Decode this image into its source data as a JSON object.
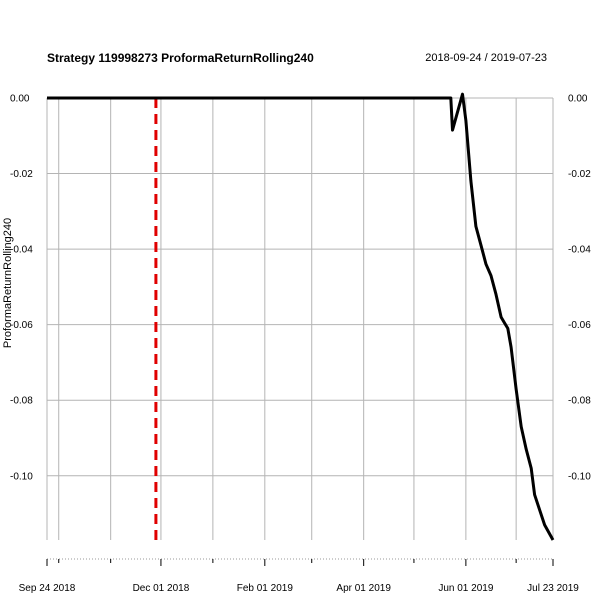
{
  "chart_data": {
    "type": "line",
    "title": "Strategy 119998273 ProformaReturnRolling240",
    "date_range": "2018-09-24 / 2019-07-23",
    "ylabel": "ProformaReturnRolling240",
    "xlabel": "",
    "x_start": "2018-09-24",
    "x_end": "2019-07-23",
    "ylim": [
      -0.117,
      0.0
    ],
    "y_ticks": [
      "0.00",
      "-0.02",
      "-0.04",
      "-0.06",
      "-0.08",
      "-0.10"
    ],
    "y_tick_values": [
      0.0,
      -0.02,
      -0.04,
      -0.06,
      -0.08,
      -0.1
    ],
    "x_ticks": [
      {
        "label": "Sep 24 2018",
        "date": "2018-09-24"
      },
      {
        "label": "Dec 01 2018",
        "date": "2018-12-01"
      },
      {
        "label": "Feb 01 2019",
        "date": "2019-02-01"
      },
      {
        "label": "Apr 01 2019",
        "date": "2019-04-01"
      },
      {
        "label": "Jun 01 2019",
        "date": "2019-06-01"
      },
      {
        "label": "Jul 23 2019",
        "date": "2019-07-23"
      }
    ],
    "minor_grid_dates": [
      "2018-10-01",
      "2018-11-01",
      "2019-01-01",
      "2019-03-01",
      "2019-05-01",
      "2019-07-01"
    ],
    "grid": true,
    "vline": {
      "date": "2018-11-28",
      "color": "#e00000",
      "style": "dashed"
    },
    "series": [
      {
        "color": "#000000",
        "points": [
          [
            "2018-09-24",
            0.0
          ],
          [
            "2019-05-23",
            0.0
          ],
          [
            "2019-05-24",
            -0.0085
          ],
          [
            "2019-05-30",
            0.001
          ],
          [
            "2019-06-01",
            -0.006
          ],
          [
            "2019-06-04",
            -0.022
          ],
          [
            "2019-06-07",
            -0.034
          ],
          [
            "2019-06-10",
            -0.039
          ],
          [
            "2019-06-13",
            -0.044
          ],
          [
            "2019-06-16",
            -0.047
          ],
          [
            "2019-06-19",
            -0.052
          ],
          [
            "2019-06-22",
            -0.058
          ],
          [
            "2019-06-24",
            -0.0595
          ],
          [
            "2019-06-26",
            -0.061
          ],
          [
            "2019-06-28",
            -0.066
          ],
          [
            "2019-07-01",
            -0.077
          ],
          [
            "2019-07-04",
            -0.087
          ],
          [
            "2019-07-07",
            -0.093
          ],
          [
            "2019-07-10",
            -0.098
          ],
          [
            "2019-07-12",
            -0.105
          ],
          [
            "2019-07-15",
            -0.109
          ],
          [
            "2019-07-18",
            -0.113
          ],
          [
            "2019-07-23",
            -0.117
          ]
        ]
      }
    ]
  }
}
